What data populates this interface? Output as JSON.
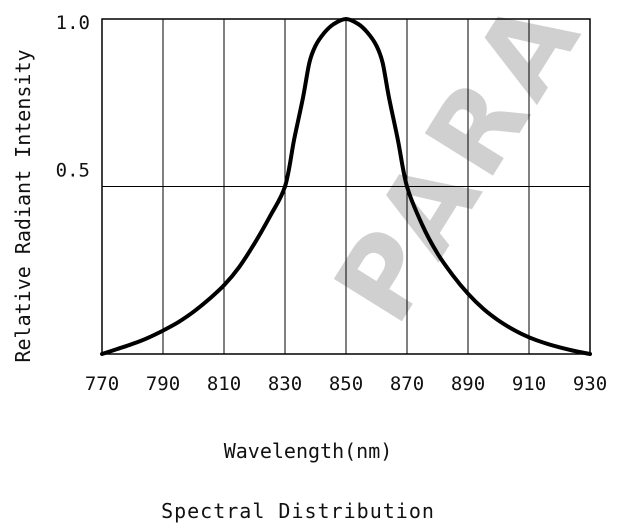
{
  "chart_data": {
    "type": "line",
    "title": "",
    "caption": "Spectral Distribution",
    "xlabel": "Wavelength(nm)",
    "ylabel": "Relative Radiant Intensity",
    "xlim": [
      770,
      930
    ],
    "ylim": [
      0,
      1.0
    ],
    "x_ticks": [
      770,
      790,
      810,
      830,
      850,
      870,
      890,
      910,
      930
    ],
    "x_tick_labels": [
      "770",
      "790",
      "810",
      "830",
      "850",
      "870",
      "890",
      "910",
      "930"
    ],
    "y_ticks": [
      0.5,
      1.0
    ],
    "y_tick_labels": [
      "0.5",
      "1.0"
    ],
    "grid": true,
    "watermark": "PARA",
    "series": [
      {
        "x": [
          770,
          775,
          780,
          785,
          790,
          795,
          800,
          805,
          810,
          815,
          820,
          825,
          830,
          833,
          836,
          838,
          840,
          843,
          846,
          850,
          854,
          857,
          860,
          862,
          864,
          867,
          870,
          875,
          880,
          885,
          890,
          895,
          900,
          905,
          910,
          915,
          920,
          925,
          930
        ],
        "y": [
          0.0,
          0.015,
          0.03,
          0.048,
          0.07,
          0.095,
          0.126,
          0.163,
          0.205,
          0.26,
          0.33,
          0.41,
          0.5,
          0.64,
          0.77,
          0.87,
          0.92,
          0.96,
          0.985,
          1.0,
          0.985,
          0.96,
          0.92,
          0.87,
          0.77,
          0.64,
          0.5,
          0.385,
          0.3,
          0.235,
          0.18,
          0.135,
          0.1,
          0.072,
          0.05,
          0.033,
          0.02,
          0.009,
          0.0
        ]
      }
    ],
    "colors": {
      "line": "#000000",
      "grid": "#000000",
      "watermark": "#c8c8c8"
    }
  }
}
